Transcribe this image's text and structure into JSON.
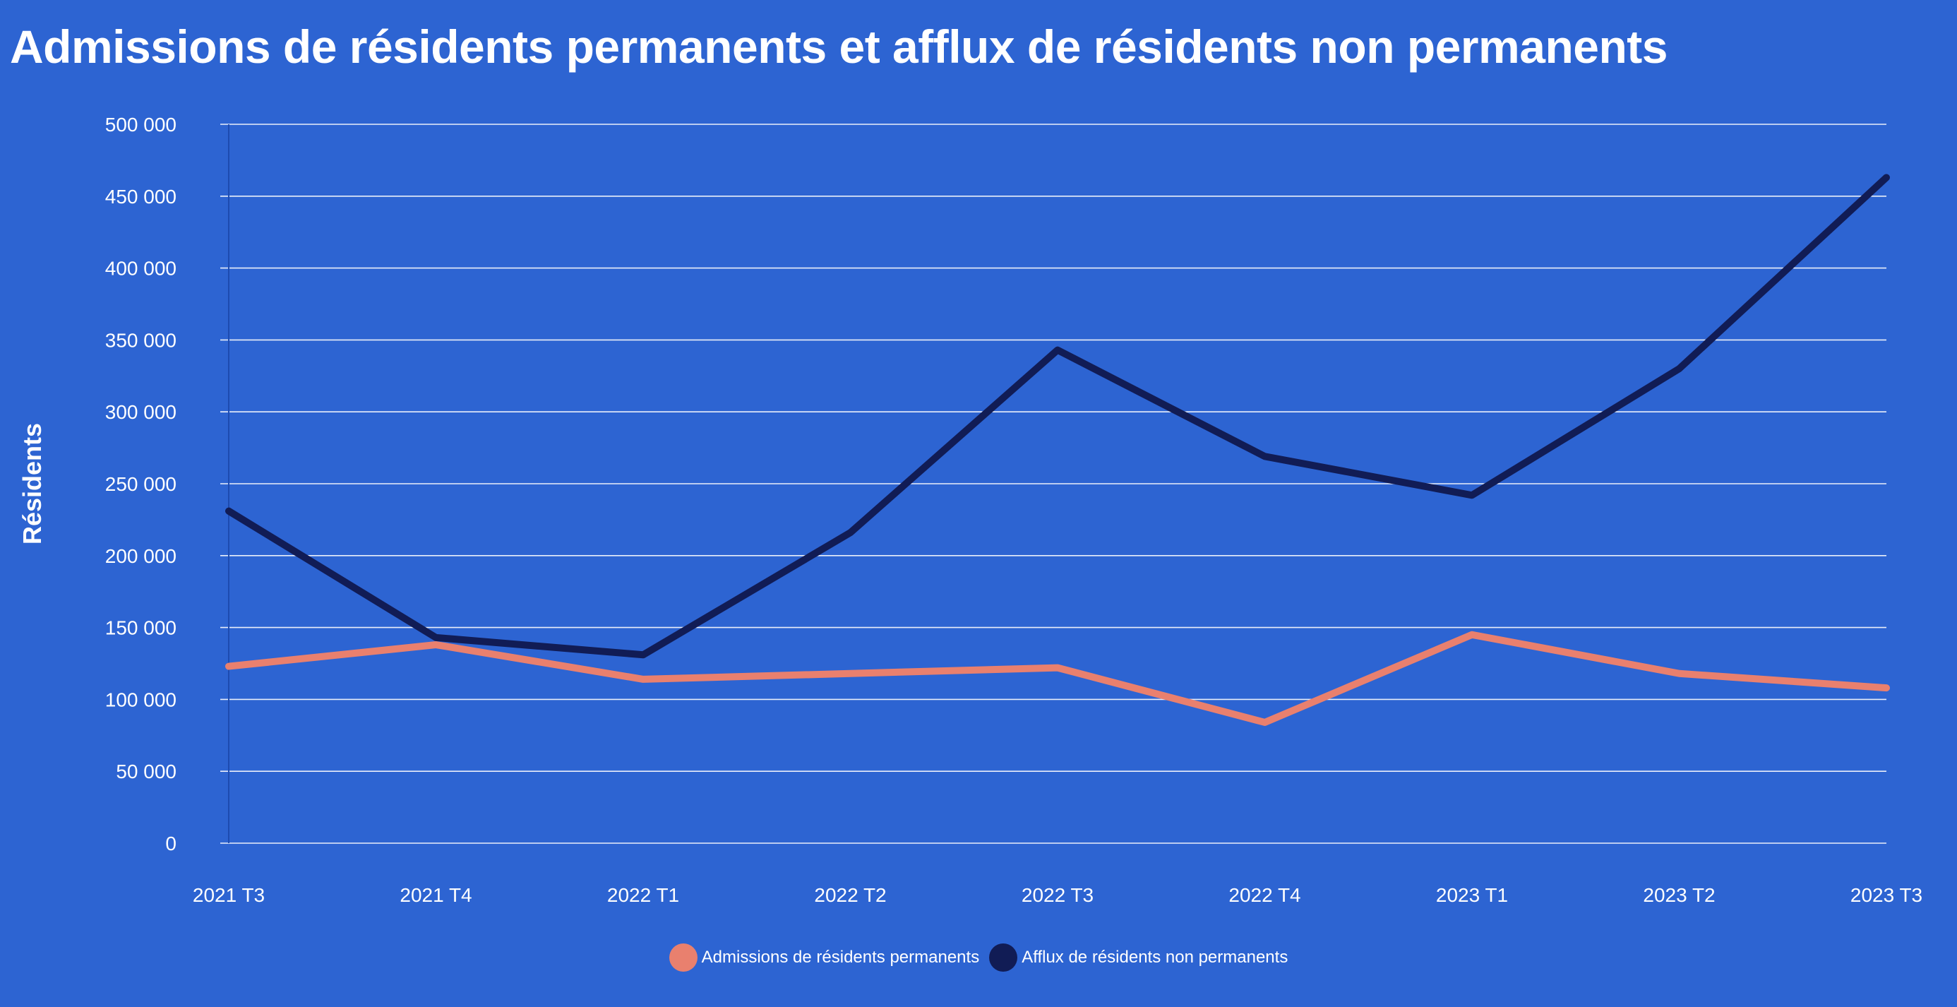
{
  "chart_data": {
    "type": "line",
    "title": "Admissions de résidents permanents et afflux de résidents non permanents",
    "xlabel": "",
    "ylabel": "Résidents",
    "categories": [
      "2021 T3",
      "2021 T4",
      "2022 T1",
      "2022 T2",
      "2022 T3",
      "2022 T4",
      "2023 T1",
      "2023 T2",
      "2023 T3"
    ],
    "ylim": [
      0,
      500000
    ],
    "yticks": [
      0,
      50000,
      100000,
      150000,
      200000,
      250000,
      300000,
      350000,
      400000,
      450000,
      500000
    ],
    "ytick_labels": [
      "0",
      "50 000",
      "100 000",
      "150 000",
      "200 000",
      "250 000",
      "300 000",
      "350 000",
      "400 000",
      "450 000",
      "500 000"
    ],
    "grid": true,
    "legend_position": "bottom",
    "series": [
      {
        "name": "Admissions de résidents permanents",
        "color": "#e9806e",
        "values": [
          123000,
          138000,
          114000,
          118000,
          122000,
          84000,
          145000,
          118000,
          108000
        ]
      },
      {
        "name": "Afflux de résidents non permanents",
        "color": "#111c55",
        "values": [
          231000,
          143000,
          131000,
          216000,
          343000,
          269000,
          242000,
          330000,
          463000
        ]
      }
    ]
  }
}
